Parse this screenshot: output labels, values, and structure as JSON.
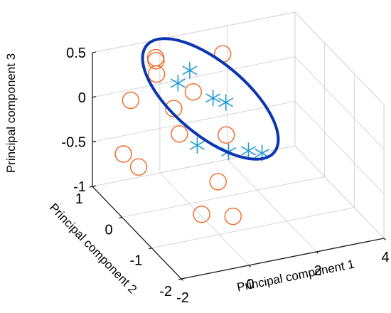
{
  "chart_data": {
    "type": "scatter",
    "dimensions": 3,
    "grid": true,
    "axes": {
      "x": {
        "label": "Principal component 1",
        "lim": [
          -2,
          4
        ],
        "ticks": [
          "-2",
          "0",
          "2",
          "4"
        ]
      },
      "y": {
        "label": "Principal component 2",
        "lim": [
          -2,
          1
        ],
        "ticks": [
          "-2",
          "-1",
          "0",
          "1"
        ]
      },
      "z": {
        "label": "Principal component 3",
        "lim": [
          -1,
          0.5
        ],
        "ticks": [
          "-1",
          "-0.5",
          "0",
          "0.5"
        ]
      }
    },
    "series": [
      {
        "marker": "circle",
        "color": "#f26522",
        "points": [
          {
            "x": -1.12,
            "y": 0.71,
            "z": 0.0
          },
          {
            "x": -1.52,
            "y": 0.5,
            "z": -0.5
          },
          {
            "x": -1.28,
            "y": 0.26,
            "z": -0.58
          },
          {
            "x": -0.44,
            "y": 0.63,
            "z": 0.42
          },
          {
            "x": -0.47,
            "y": 0.58,
            "z": 0.29
          },
          {
            "x": -0.29,
            "y": 0.81,
            "z": 0.38
          },
          {
            "x": -0.25,
            "y": 0.25,
            "z": 0.0
          },
          {
            "x": -0.5,
            "y": -0.23,
            "z": -0.1
          },
          {
            "x": 0.85,
            "y": 0.84,
            "z": -0.1
          },
          {
            "x": 2.06,
            "y": 1.23,
            "z": 0.1
          },
          {
            "x": 1.49,
            "y": 0.46,
            "z": -0.5
          },
          {
            "x": 0.81,
            "y": -0.04,
            "z": -0.8
          },
          {
            "x": -0.38,
            "y": -0.84,
            "z": -0.8
          },
          {
            "x": 0.78,
            "y": -0.58,
            "z": -1.0
          }
        ]
      },
      {
        "marker": "asterisk",
        "color": "#1f9bd7",
        "points": [
          {
            "x": 0.85,
            "y": 0.96,
            "z": 0.1
          },
          {
            "x": 0.42,
            "y": 0.87,
            "z": 0.02
          },
          {
            "x": 0.2,
            "y": -0.03,
            "z": -0.35
          },
          {
            "x": 1.32,
            "y": 0.71,
            "z": -0.16
          },
          {
            "x": 1.47,
            "y": 0.45,
            "z": -0.13
          },
          {
            "x": 1.36,
            "y": 0.23,
            "z": -0.6
          },
          {
            "x": 2.07,
            "y": 0.37,
            "z": -0.69
          },
          {
            "x": 2.35,
            "y": 0.23,
            "z": -0.69
          }
        ]
      }
    ],
    "highlight": {
      "shape": "ellipse",
      "color": "#0b36b0",
      "encloses": "asterisk series"
    }
  }
}
